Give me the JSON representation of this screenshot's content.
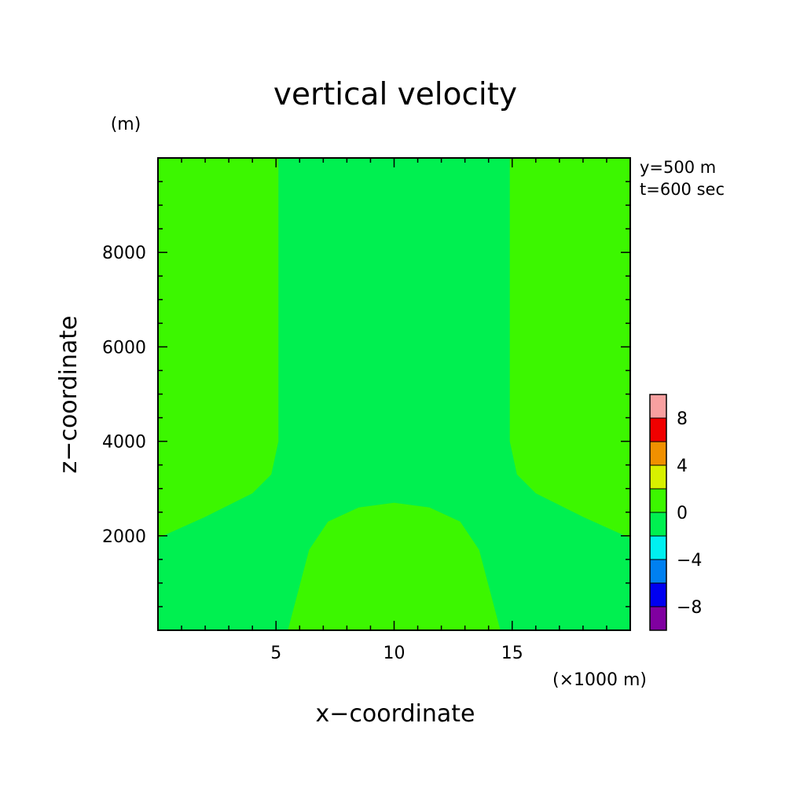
{
  "colors": {
    "background": "#ffffff",
    "axis": "#000000",
    "field_positive": "#3cf700",
    "field_negative": "#00f050"
  },
  "chart_data": {
    "type": "heatmap",
    "title": "vertical velocity",
    "xlabel": "x−coordinate",
    "ylabel": "z−coordinate",
    "x_unit": "(×1000 m)",
    "y_unit": "(m)",
    "info": [
      "y=500 m",
      "t=600 sec"
    ],
    "xlim": [
      0,
      20
    ],
    "ylim": [
      0,
      10000
    ],
    "x_ticks": [
      5,
      10,
      15
    ],
    "x_tick_labels": [
      "5",
      "10",
      "15"
    ],
    "x_minor_step": 1,
    "y_ticks": [
      2000,
      4000,
      6000,
      8000
    ],
    "y_tick_labels": [
      "2000",
      "4000",
      "6000",
      "8000"
    ],
    "y_minor_step": 500,
    "regions": [
      {
        "name": "left-positive-region",
        "level": "0 to 2",
        "color": "#3cf700",
        "points": [
          [
            0,
            10000
          ],
          [
            5.1,
            10000
          ],
          [
            5.1,
            4000
          ],
          [
            4.8,
            3300
          ],
          [
            4.0,
            2900
          ],
          [
            2.0,
            2400
          ],
          [
            0,
            1950
          ]
        ]
      },
      {
        "name": "right-positive-region",
        "level": "0 to 2",
        "color": "#3cf700",
        "points": [
          [
            20,
            10000
          ],
          [
            14.9,
            10000
          ],
          [
            14.9,
            4000
          ],
          [
            15.2,
            3300
          ],
          [
            16.0,
            2900
          ],
          [
            18.0,
            2400
          ],
          [
            20,
            1950
          ]
        ]
      },
      {
        "name": "bottom-positive-region",
        "level": "0 to 2",
        "color": "#3cf700",
        "points": [
          [
            5.5,
            0
          ],
          [
            6.4,
            1700
          ],
          [
            7.2,
            2300
          ],
          [
            8.5,
            2600
          ],
          [
            10,
            2700
          ],
          [
            11.5,
            2600
          ],
          [
            12.8,
            2300
          ],
          [
            13.6,
            1700
          ],
          [
            14.5,
            0
          ]
        ]
      }
    ],
    "colorbar": {
      "levels": [
        {
          "color": "#8000a0"
        },
        {
          "color": "#0000f0"
        },
        {
          "color": "#0080f0"
        },
        {
          "color": "#00f0f0"
        },
        {
          "color": "#00f050"
        },
        {
          "color": "#3cf700"
        },
        {
          "color": "#d8f000"
        },
        {
          "color": "#f09000"
        },
        {
          "color": "#f00000"
        },
        {
          "color": "#f8a0a0"
        }
      ],
      "labels": [
        "−8",
        "−4",
        "0",
        "4",
        "8"
      ],
      "label_values": [
        -8,
        -4,
        0,
        4,
        8
      ],
      "range": [
        -10,
        10
      ]
    }
  }
}
